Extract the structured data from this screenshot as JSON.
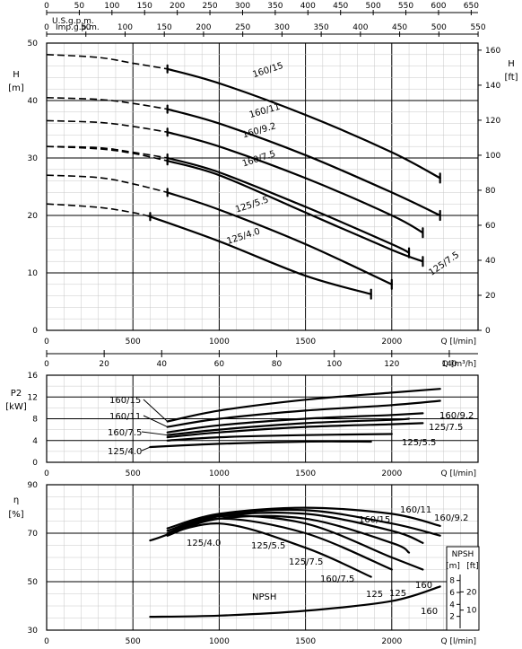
{
  "chart_data": [
    {
      "type": "line",
      "panel": "head",
      "ylabel": "H [m]",
      "ylabel_right": "H [ft]",
      "xlabel": "Q [l/min]",
      "ylim": [
        0,
        50
      ],
      "y_ticks": [
        "0",
        "10",
        "20",
        "30",
        "40",
        "50"
      ],
      "ft_ticks": [
        "0",
        "20",
        "40",
        "60",
        "80",
        "100",
        "120",
        "140",
        "160"
      ],
      "top_axes": {
        "usgpm_label": "U.S.g.p.m.",
        "usgpm_ticks": [
          "0",
          "50",
          "100",
          "150",
          "200",
          "250",
          "300",
          "350",
          "400",
          "450",
          "500",
          "550",
          "600",
          "650"
        ],
        "impgpm_label": "Imp.g.p.m.",
        "impgpm_ticks": [
          "0",
          "50",
          "100",
          "150",
          "200",
          "250",
          "300",
          "350",
          "400",
          "450",
          "500",
          "550"
        ]
      },
      "x_ticks": [
        "0",
        "500",
        "1000",
        "1500",
        "2000"
      ],
      "series": [
        {
          "name": "160/15",
          "points": [
            [
              0,
              48
            ],
            [
              300,
              47.5
            ],
            [
              500,
              46.5
            ],
            [
              700,
              45.5
            ],
            [
              1000,
              43
            ],
            [
              1500,
              37.5
            ],
            [
              2000,
              31
            ],
            [
              2280,
              26.5
            ]
          ]
        },
        {
          "name": "160/11",
          "points": [
            [
              0,
              40.5
            ],
            [
              300,
              40.2
            ],
            [
              500,
              39.5
            ],
            [
              700,
              38.5
            ],
            [
              1000,
              36
            ],
            [
              1500,
              30.5
            ],
            [
              2000,
              24
            ],
            [
              2280,
              20
            ]
          ]
        },
        {
          "name": "160/9.2",
          "points": [
            [
              0,
              36.5
            ],
            [
              300,
              36.2
            ],
            [
              500,
              35.5
            ],
            [
              700,
              34.5
            ],
            [
              1000,
              32
            ],
            [
              1500,
              26.5
            ],
            [
              2000,
              20
            ],
            [
              2180,
              17
            ]
          ]
        },
        {
          "name": "160/7.5",
          "points": [
            [
              0,
              32
            ],
            [
              300,
              31.8
            ],
            [
              500,
              31
            ],
            [
              700,
              30
            ],
            [
              1000,
              27.5
            ],
            [
              1500,
              21.5
            ],
            [
              2000,
              15
            ],
            [
              2100,
              13.5
            ]
          ]
        },
        {
          "name": "125/7.5",
          "points": [
            [
              0,
              32
            ],
            [
              300,
              31.6
            ],
            [
              500,
              30.8
            ],
            [
              700,
              29.5
            ],
            [
              1000,
              27
            ],
            [
              1500,
              20.5
            ],
            [
              2000,
              14
            ],
            [
              2180,
              12
            ]
          ]
        },
        {
          "name": "125/5.5",
          "points": [
            [
              0,
              27
            ],
            [
              300,
              26.6
            ],
            [
              500,
              25.5
            ],
            [
              700,
              24
            ],
            [
              1000,
              21
            ],
            [
              1500,
              15
            ],
            [
              2000,
              8
            ]
          ]
        },
        {
          "name": "125/4.0",
          "points": [
            [
              0,
              22
            ],
            [
              300,
              21.4
            ],
            [
              500,
              20.5
            ],
            [
              600,
              19.8
            ],
            [
              1000,
              15.5
            ],
            [
              1500,
              9.5
            ],
            [
              1880,
              6.3
            ]
          ]
        }
      ]
    },
    {
      "type": "line",
      "panel": "power",
      "ylabel": "P2 [kW]",
      "xlabel": "Q [m³/h]",
      "xlim": [
        0,
        140
      ],
      "x_ticks": [
        "0",
        "20",
        "40",
        "60",
        "80",
        "100",
        "120",
        "140"
      ],
      "ylim": [
        0,
        16
      ],
      "y_ticks": [
        "0",
        "4",
        "8",
        "12",
        "16"
      ],
      "series": [
        {
          "name": "160/15",
          "points": [
            [
              700,
              7.5
            ],
            [
              1000,
              9.5
            ],
            [
              1500,
              11.5
            ],
            [
              2000,
              12.8
            ],
            [
              2280,
              13.5
            ]
          ]
        },
        {
          "name": "160/11",
          "points": [
            [
              700,
              6.5
            ],
            [
              1000,
              8
            ],
            [
              1500,
              9.5
            ],
            [
              2000,
              10.5
            ],
            [
              2280,
              11.3
            ]
          ]
        },
        {
          "name": "160/9.2",
          "points": [
            [
              700,
              5.5
            ],
            [
              1000,
              6.8
            ],
            [
              1500,
              8
            ],
            [
              2000,
              8.7
            ],
            [
              2180,
              9
            ]
          ]
        },
        {
          "name": "160/7.5",
          "points": [
            [
              700,
              5
            ],
            [
              1000,
              6
            ],
            [
              1500,
              7.2
            ],
            [
              2000,
              7.8
            ],
            [
              2100,
              8
            ]
          ]
        },
        {
          "name": "125/7.5",
          "points": [
            [
              700,
              4.6
            ],
            [
              1000,
              5.5
            ],
            [
              1500,
              6.5
            ],
            [
              2000,
              7
            ],
            [
              2180,
              7.2
            ]
          ]
        },
        {
          "name": "125/5.5",
          "points": [
            [
              700,
              4
            ],
            [
              1000,
              4.6
            ],
            [
              1500,
              5
            ],
            [
              2000,
              5.2
            ]
          ]
        },
        {
          "name": "125/4.0",
          "points": [
            [
              600,
              2.8
            ],
            [
              1000,
              3.4
            ],
            [
              1500,
              3.8
            ],
            [
              1880,
              3.8
            ]
          ]
        }
      ]
    },
    {
      "type": "line",
      "panel": "efficiency",
      "ylabel": "η [%]",
      "xlabel": "Q [l/min]",
      "ylim": [
        30,
        90
      ],
      "y_ticks": [
        "30",
        "50",
        "70",
        "90"
      ],
      "x_ticks": [
        "0",
        "500",
        "1000",
        "1500",
        "2000"
      ],
      "npsh_label": "NPSH",
      "npsh_units": [
        "[m]",
        "[ft]"
      ],
      "npsh_m_ticks": [
        "2",
        "4",
        "6",
        "8"
      ],
      "npsh_ft_ticks": [
        "10",
        "20"
      ],
      "npsh_curve_labels": [
        "125",
        "125",
        "160",
        "160"
      ],
      "series": [
        {
          "name": "160/15",
          "points": [
            [
              700,
              72
            ],
            [
              1000,
              78
            ],
            [
              1500,
              80.5
            ],
            [
              2000,
              78
            ],
            [
              2280,
              73
            ]
          ]
        },
        {
          "name": "160/11",
          "points": [
            [
              700,
              71
            ],
            [
              1000,
              77.5
            ],
            [
              1500,
              79.5
            ],
            [
              2000,
              74
            ],
            [
              2280,
              69
            ]
          ]
        },
        {
          "name": "160/9.2",
          "points": [
            [
              700,
              70
            ],
            [
              1000,
              77
            ],
            [
              1500,
              78
            ],
            [
              2000,
              71
            ],
            [
              2180,
              66
            ]
          ]
        },
        {
          "name": "160/7.5",
          "points": [
            [
              700,
              69
            ],
            [
              1000,
              76
            ],
            [
              1500,
              76
            ],
            [
              2000,
              66
            ],
            [
              2100,
              62
            ]
          ]
        },
        {
          "name": "125/7.5",
          "points": [
            [
              700,
              70
            ],
            [
              1000,
              77
            ],
            [
              1500,
              74
            ],
            [
              2000,
              60
            ],
            [
              2180,
              55
            ]
          ]
        },
        {
          "name": "125/5.5",
          "points": [
            [
              700,
              69
            ],
            [
              1000,
              76
            ],
            [
              1500,
              70
            ],
            [
              2000,
              55
            ]
          ]
        },
        {
          "name": "125/4.0",
          "points": [
            [
              600,
              67
            ],
            [
              1000,
              74
            ],
            [
              1500,
              64
            ],
            [
              1880,
              52
            ]
          ]
        },
        {
          "name": "NPSH",
          "points": [
            [
              600,
              35.5
            ],
            [
              1000,
              36
            ],
            [
              1500,
              38
            ],
            [
              2000,
              42
            ],
            [
              2280,
              48
            ]
          ]
        }
      ]
    }
  ]
}
